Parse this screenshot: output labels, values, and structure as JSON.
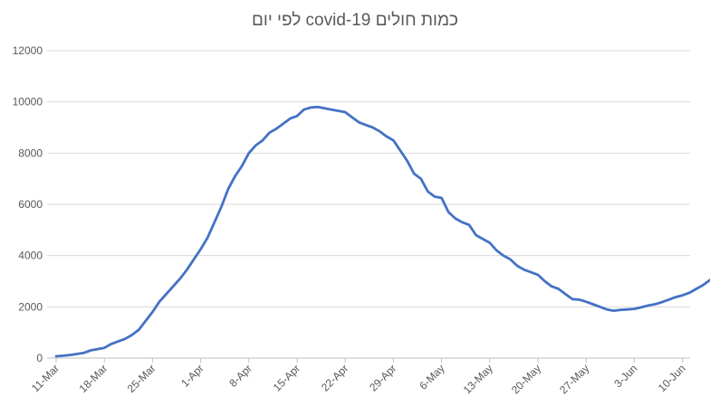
{
  "chart_data": {
    "type": "line",
    "title": "כמות חולים covid-19 לפי יום",
    "xlabel": "",
    "ylabel": "",
    "ylim": [
      0,
      12000
    ],
    "yticks": [
      0,
      2000,
      4000,
      6000,
      8000,
      10000,
      12000
    ],
    "grid": true,
    "legend": "none",
    "line_color": "#4472c4",
    "xtick_labels": [
      "11-Mar",
      "18-Mar",
      "25-Mar",
      "1-Apr",
      "8-Apr",
      "15-Apr",
      "22-Apr",
      "29-Apr",
      "6-May",
      "13-May",
      "20-May",
      "27-May",
      "3-Jun",
      "10-Jun"
    ],
    "start_date": "2020-03-11",
    "series": [
      {
        "values": [
          70,
          90,
          120,
          160,
          200,
          300,
          350,
          400,
          550,
          650,
          750,
          900,
          1100,
          1450,
          1800,
          2200,
          2500,
          2800,
          3100,
          3450,
          3850,
          4250,
          4700,
          5300,
          5900,
          6600,
          7100,
          7500,
          8000,
          8300,
          8500,
          8800,
          8950,
          9150,
          9350,
          9450,
          9700,
          9780,
          9800,
          9750,
          9700,
          9650,
          9600,
          9400,
          9200,
          9100,
          9000,
          8850,
          8650,
          8500,
          8100,
          7700,
          7200,
          7000,
          6500,
          6300,
          6250,
          5700,
          5450,
          5300,
          5200,
          4800,
          4650,
          4500,
          4200,
          4000,
          3850,
          3600,
          3450,
          3350,
          3250,
          3000,
          2800,
          2700,
          2500,
          2300,
          2280,
          2200,
          2100,
          2000,
          1900,
          1850,
          1880,
          1900,
          1920,
          1980,
          2050,
          2100,
          2180,
          2280,
          2380,
          2450,
          2550,
          2700,
          2850,
          3050
        ]
      }
    ]
  }
}
